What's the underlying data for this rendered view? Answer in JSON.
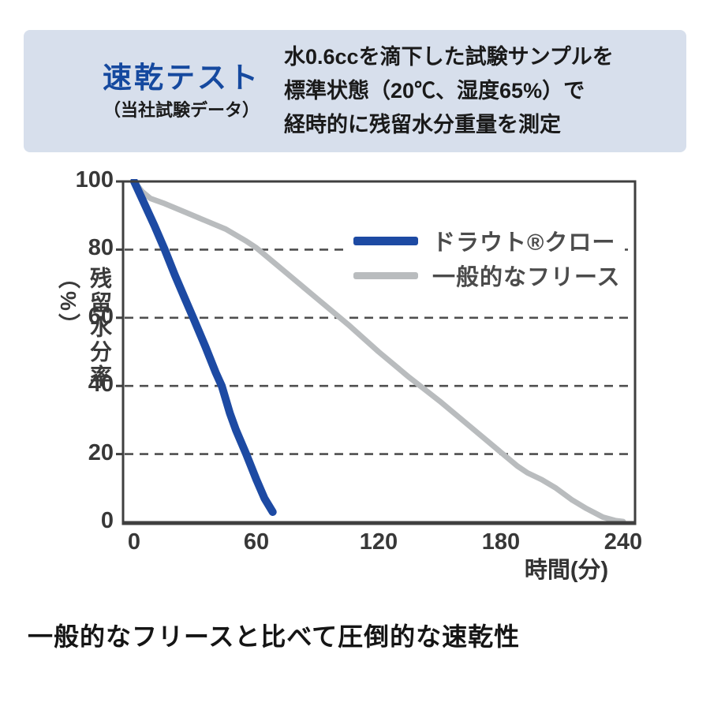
{
  "header": {
    "title": "速乾テスト",
    "subtitle": "（当社試験データ）",
    "description_lines": [
      "水0.6ccを滴下した試験サンプルを",
      "標準状態（20℃、湿度65%）で",
      "経時的に残留水分重量を測定"
    ]
  },
  "chart_data": {
    "type": "line",
    "title": "速乾テスト（当社試験データ）",
    "xlabel": "時間(分)",
    "ylabel": "残留水分率（%）",
    "xlim": [
      0,
      240
    ],
    "ylim": [
      0,
      100
    ],
    "x_ticks": [
      0,
      60,
      120,
      180,
      240
    ],
    "y_ticks": [
      0,
      20,
      40,
      60,
      80,
      100
    ],
    "grid": "horizontal dashed lines at 20, 40, 60, 80",
    "legend_position": "upper right inside plot",
    "series": [
      {
        "name": "ドラウト®クロー",
        "color": "#1d4aa3",
        "width": 10,
        "x": [
          0,
          5,
          10,
          15,
          20,
          25,
          29,
          35,
          40,
          43,
          47,
          50,
          55,
          60,
          64,
          68
        ],
        "y": [
          100,
          93.5,
          87,
          80,
          72.5,
          65.5,
          60,
          51.5,
          44,
          40,
          32,
          27,
          20,
          12.5,
          7,
          3
        ]
      },
      {
        "name": "一般的なフリース",
        "color": "#b9bcbe",
        "width": 7,
        "x": [
          0,
          4,
          8,
          15,
          25,
          35,
          45,
          55,
          60,
          75,
          90,
          105,
          120,
          135,
          150,
          165,
          180,
          188,
          193,
          200,
          207,
          215,
          222,
          230,
          236,
          240
        ],
        "y": [
          100,
          97,
          95,
          93.5,
          91,
          88.5,
          86,
          82.5,
          80.5,
          73,
          65.5,
          58,
          50,
          42.5,
          35.5,
          28,
          20.5,
          16.5,
          14.5,
          12.5,
          10,
          6.5,
          4,
          1.5,
          0.5,
          0.2
        ]
      }
    ]
  },
  "caption": "一般的なフリースと比べて圧倒的な速乾性",
  "colors": {
    "header_bg": "#d7dfec",
    "title_blue": "#15499f",
    "series_blue": "#1d4aa3",
    "series_gray": "#b9bcbe",
    "axis": "#3f3f3f",
    "gridline": "#4f4f4f",
    "text": "#1a1a1a"
  }
}
